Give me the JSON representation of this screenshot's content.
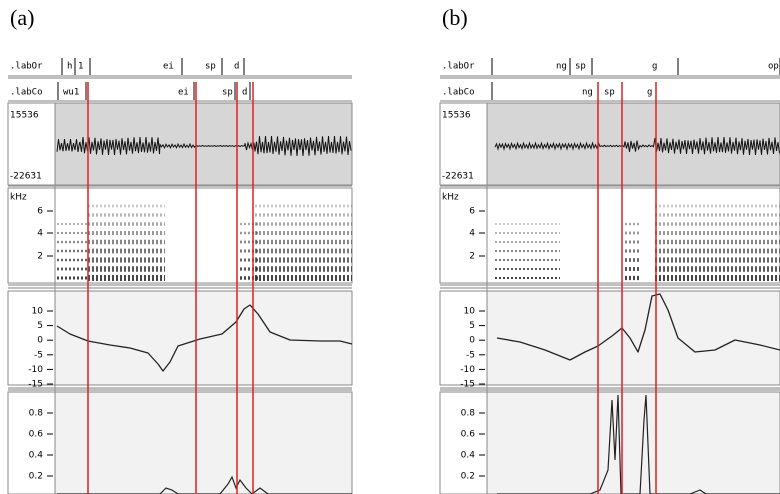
{
  "panels": [
    {
      "label": "(a)",
      "tier1": [
        ".labOr",
        "h",
        "1",
        "ei",
        "sp",
        "d"
      ],
      "tier2": [
        ".labCo",
        "wu1",
        "ei",
        "sp",
        "d"
      ],
      "wave_max": "15536",
      "wave_min": "-22631",
      "spec_unit": "kHz",
      "spec_ticks": [
        "6",
        "4",
        "2"
      ],
      "f0_ticks": [
        "10",
        "5",
        "0",
        "-5",
        "-10",
        "-15"
      ],
      "prob_ticks": [
        "0.8",
        "0.6",
        "0.4",
        "0.2"
      ]
    },
    {
      "label": "(b)",
      "tier1": [
        ".labOr",
        "ng",
        "sp",
        "g",
        "op"
      ],
      "tier2": [
        ".labCo",
        "ng",
        "sp",
        "g"
      ],
      "wave_max": "15536",
      "wave_min": "-22631",
      "spec_unit": "kHz",
      "spec_ticks": [
        "6",
        "4",
        "2"
      ],
      "f0_ticks": [
        "10",
        "5",
        "0",
        "-5",
        "-10",
        "-15"
      ],
      "prob_ticks": [
        "0.8",
        "0.6",
        "0.4",
        "0.2"
      ]
    }
  ]
}
